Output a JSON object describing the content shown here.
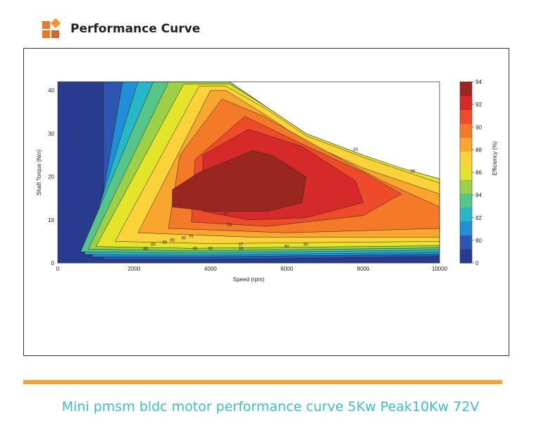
{
  "header": {
    "title": "Performance Curve"
  },
  "caption": "Mini pmsm bldc motor performance curve 5Kw Peak10Kw 72V",
  "colors": {
    "accent_bar": "#f0a43a",
    "caption": "#3cc0c4"
  },
  "chart_data": {
    "type": "contour",
    "title": "",
    "xlabel": "Speed  (rpm)",
    "ylabel": "Shaft Torque  (Nm)",
    "xlim": [
      0,
      10000
    ],
    "ylim": [
      0,
      42
    ],
    "x_ticks": [
      0,
      2000,
      4000,
      6000,
      8000,
      10000
    ],
    "y_ticks": [
      0,
      10,
      20,
      30,
      40
    ],
    "colorbar": {
      "label": "Efficiency  (%)",
      "ticks": [
        94,
        92,
        90,
        88,
        86,
        84,
        82,
        80,
        0
      ],
      "colors": [
        "#283b8e",
        "#2d56b3",
        "#1f8fd8",
        "#28b7c7",
        "#55c58a",
        "#9bd047",
        "#e4e42a",
        "#fbd23a",
        "#f9a62e",
        "#f47a29",
        "#ee4b2b",
        "#d62a2a",
        "#9a2620"
      ]
    },
    "efficiency_levels": [
      80,
      82,
      84,
      86,
      88,
      89,
      90,
      91,
      92,
      93,
      94
    ],
    "peak_efficiency_region": {
      "speed_rpm": [
        3000,
        6500
      ],
      "torque_nm": [
        12,
        26
      ]
    },
    "max_torque_envelope": {
      "speed": [
        0,
        4500,
        5500,
        6500,
        8000,
        9000,
        10000
      ],
      "torque": [
        42,
        42,
        36,
        30,
        25,
        22,
        19.5
      ]
    },
    "contour_labels": [
      {
        "x": 2300,
        "y": 3,
        "text": "88"
      },
      {
        "x": 2500,
        "y": 4,
        "text": "86"
      },
      {
        "x": 2800,
        "y": 4.5,
        "text": "86"
      },
      {
        "x": 3000,
        "y": 5,
        "text": "86"
      },
      {
        "x": 3300,
        "y": 5.5,
        "text": "90"
      },
      {
        "x": 3500,
        "y": 6,
        "text": "91"
      },
      {
        "x": 3600,
        "y": 3,
        "text": "96"
      },
      {
        "x": 4000,
        "y": 3,
        "text": "90"
      },
      {
        "x": 4800,
        "y": 4,
        "text": "87"
      },
      {
        "x": 4800,
        "y": 3,
        "text": "89"
      },
      {
        "x": 6000,
        "y": 3.5,
        "text": "90"
      },
      {
        "x": 6500,
        "y": 4,
        "text": "90"
      },
      {
        "x": 4400,
        "y": 11,
        "text": "92"
      },
      {
        "x": 4500,
        "y": 8.5,
        "text": "93"
      },
      {
        "x": 7800,
        "y": 26,
        "text": "89"
      },
      {
        "x": 9300,
        "y": 21,
        "text": "88"
      }
    ]
  }
}
